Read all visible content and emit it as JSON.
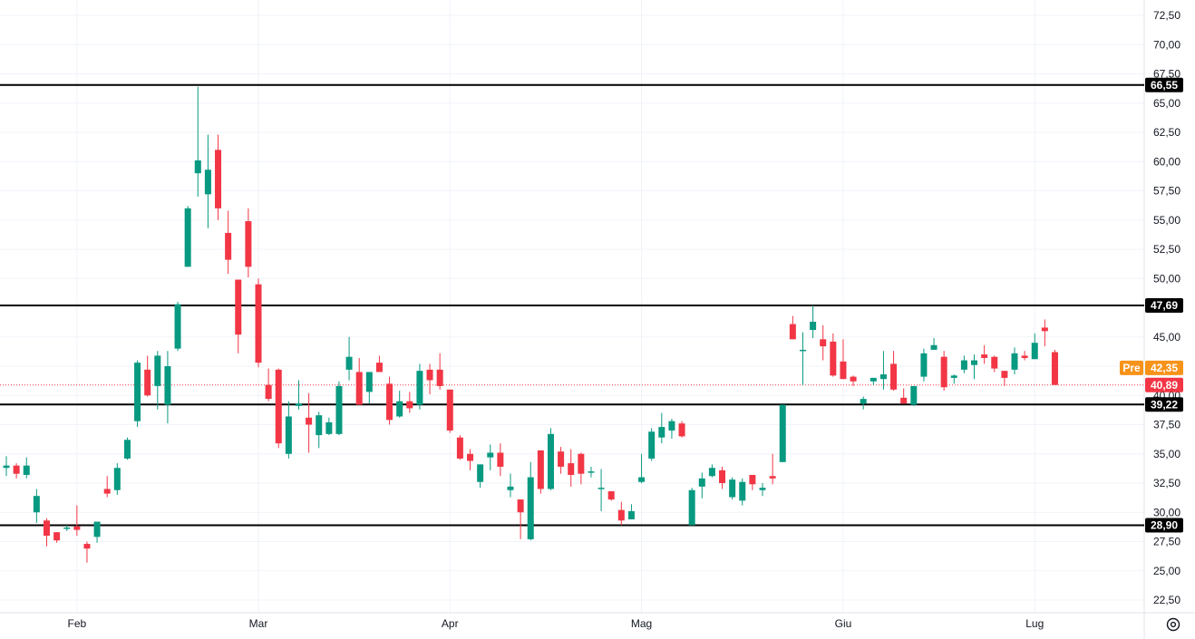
{
  "chart_data": {
    "type": "candlestick",
    "y_axis": {
      "range": [
        21.0,
        73.5
      ],
      "ticks": [
        "72,50",
        "70,00",
        "67,50",
        "65,00",
        "62,50",
        "60,00",
        "57,50",
        "55,00",
        "52,50",
        "50,00",
        "47,50",
        "45,00",
        "42,50",
        "40,00",
        "37,50",
        "35,00",
        "32,50",
        "30,00",
        "27,50",
        "25,00",
        "22,50"
      ]
    },
    "x_axis": {
      "labels": [
        {
          "label": "Feb",
          "index": 7
        },
        {
          "label": "Mar",
          "index": 25
        },
        {
          "label": "Apr",
          "index": 44
        },
        {
          "label": "Mag",
          "index": 63
        },
        {
          "label": "Giu",
          "index": 83
        },
        {
          "label": "Lug",
          "index": 102
        }
      ]
    },
    "horizontal_levels": [
      {
        "value": 66.55,
        "label": "66,55"
      },
      {
        "value": 47.69,
        "label": "47,69"
      },
      {
        "value": 39.22,
        "label": "39,22"
      },
      {
        "value": 28.9,
        "label": "28,90"
      }
    ],
    "pre_market": {
      "label": "Pre",
      "value": 42.35,
      "value_label": "42,35",
      "color": "#f7931a"
    },
    "last_price": {
      "value": 40.89,
      "value_label": "40,89",
      "color": "#f23645"
    },
    "hidden_tick": "40,00",
    "colors": {
      "up": "#089981",
      "down": "#f23645",
      "level": "#000000",
      "grid": "#f0f3fa"
    },
    "candles": [
      [
        33.8,
        34.8,
        33.1,
        34.0
      ],
      [
        34.0,
        34.2,
        32.9,
        33.3
      ],
      [
        33.2,
        34.7,
        32.9,
        34.0
      ],
      [
        30.0,
        32.0,
        29.1,
        31.4
      ],
      [
        29.3,
        29.5,
        27.1,
        28.0
      ],
      [
        28.3,
        28.3,
        27.4,
        27.6
      ],
      [
        28.7,
        28.9,
        28.4,
        28.7
      ],
      [
        28.8,
        30.6,
        28.0,
        28.5
      ],
      [
        27.3,
        27.5,
        25.7,
        26.9
      ],
      [
        27.9,
        29.2,
        27.4,
        29.2
      ],
      [
        32.0,
        33.1,
        31.3,
        31.6
      ],
      [
        31.9,
        34.2,
        31.5,
        33.8
      ],
      [
        34.6,
        36.4,
        34.5,
        36.2
      ],
      [
        37.8,
        43.0,
        37.3,
        42.8
      ],
      [
        42.2,
        43.4,
        39.9,
        40.0
      ],
      [
        40.8,
        43.8,
        38.8,
        43.4
      ],
      [
        39.2,
        43.8,
        37.6,
        42.5
      ],
      [
        44.0,
        48.0,
        43.8,
        47.8
      ],
      [
        51.0,
        56.2,
        51.0,
        56.0
      ],
      [
        59.0,
        66.4,
        57.0,
        60.1
      ],
      [
        57.2,
        62.3,
        54.3,
        59.3
      ],
      [
        61.0,
        62.3,
        55.0,
        56.0
      ],
      [
        53.9,
        55.8,
        50.4,
        51.6
      ],
      [
        49.9,
        49.9,
        43.6,
        45.2
      ],
      [
        54.9,
        56.0,
        50.1,
        51.0
      ],
      [
        49.5,
        50.0,
        42.4,
        42.8
      ],
      [
        40.9,
        42.3,
        39.5,
        39.7
      ],
      [
        42.2,
        42.3,
        35.5,
        35.9
      ],
      [
        35.0,
        39.5,
        34.6,
        38.2
      ],
      [
        39.1,
        41.3,
        38.8,
        39.3
      ],
      [
        38.1,
        40.2,
        35.1,
        37.5
      ],
      [
        36.6,
        38.6,
        35.5,
        38.3
      ],
      [
        36.7,
        38.1,
        36.6,
        37.7
      ],
      [
        36.7,
        41.2,
        36.6,
        40.8
      ],
      [
        42.2,
        45.0,
        41.3,
        43.3
      ],
      [
        42.0,
        43.2,
        39.2,
        39.2
      ],
      [
        40.3,
        42.0,
        39.3,
        42.0
      ],
      [
        42.8,
        43.4,
        42.0,
        42.0
      ],
      [
        41.0,
        41.6,
        37.5,
        37.9
      ],
      [
        38.2,
        40.4,
        38.1,
        39.5
      ],
      [
        39.5,
        40.3,
        38.5,
        38.9
      ],
      [
        39.2,
        42.7,
        38.8,
        42.1
      ],
      [
        42.2,
        42.7,
        40.1,
        41.3
      ],
      [
        42.2,
        43.6,
        40.5,
        40.8
      ],
      [
        40.5,
        40.5,
        36.8,
        37.0
      ],
      [
        36.4,
        36.6,
        34.5,
        34.6
      ],
      [
        35.0,
        35.4,
        33.6,
        34.4
      ],
      [
        32.6,
        34.1,
        32.1,
        34.1
      ],
      [
        34.7,
        35.8,
        33.6,
        35.1
      ],
      [
        35.1,
        35.9,
        33.1,
        33.9
      ],
      [
        31.9,
        33.3,
        31.3,
        32.2
      ],
      [
        31.1,
        31.1,
        27.7,
        30.0
      ],
      [
        27.7,
        34.3,
        27.6,
        33.0
      ],
      [
        35.3,
        35.3,
        31.6,
        32.0
      ],
      [
        32.0,
        37.2,
        31.9,
        36.7
      ],
      [
        35.2,
        35.6,
        33.3,
        33.9
      ],
      [
        34.2,
        35.4,
        32.2,
        33.2
      ],
      [
        35.0,
        35.1,
        32.4,
        33.3
      ],
      [
        33.4,
        33.9,
        33.0,
        33.5
      ],
      [
        32.1,
        33.7,
        30.1,
        32.1
      ],
      [
        31.8,
        31.8,
        31.0,
        31.1
      ],
      [
        30.2,
        30.9,
        28.9,
        29.3
      ],
      [
        29.4,
        30.7,
        29.4,
        30.1
      ],
      [
        32.6,
        35.0,
        32.5,
        33.0
      ],
      [
        34.6,
        37.2,
        34.4,
        36.9
      ],
      [
        36.4,
        38.5,
        35.9,
        37.3
      ],
      [
        37.0,
        38.0,
        36.3,
        37.8
      ],
      [
        37.6,
        37.8,
        36.4,
        36.5
      ],
      [
        28.9,
        32.1,
        28.9,
        31.9
      ],
      [
        32.2,
        33.4,
        31.2,
        32.9
      ],
      [
        33.1,
        34.1,
        33.0,
        33.8
      ],
      [
        33.6,
        33.9,
        32.0,
        32.5
      ],
      [
        31.3,
        33.0,
        31.1,
        32.8
      ],
      [
        31.0,
        32.9,
        30.6,
        32.6
      ],
      [
        33.2,
        33.2,
        31.9,
        32.4
      ],
      [
        31.9,
        32.5,
        31.4,
        32.1
      ],
      [
        33.1,
        35.0,
        32.4,
        32.9
      ],
      [
        34.3,
        39.2,
        34.3,
        39.2
      ],
      [
        46.1,
        46.8,
        44.8,
        44.8
      ],
      [
        43.8,
        45.4,
        40.9,
        43.9
      ],
      [
        45.6,
        47.7,
        44.9,
        46.3
      ],
      [
        44.8,
        46.0,
        43.0,
        44.2
      ],
      [
        44.6,
        45.3,
        41.6,
        41.7
      ],
      [
        42.9,
        44.8,
        41.4,
        41.4
      ],
      [
        41.6,
        41.7,
        40.8,
        41.2
      ],
      [
        39.3,
        39.9,
        38.8,
        39.7
      ],
      [
        41.2,
        41.5,
        40.9,
        41.5
      ],
      [
        41.4,
        43.8,
        40.5,
        41.8
      ],
      [
        42.7,
        43.8,
        40.4,
        40.5
      ],
      [
        39.8,
        40.6,
        39.3,
        39.3
      ],
      [
        39.2,
        40.8,
        39.1,
        40.8
      ],
      [
        41.6,
        44.0,
        41.2,
        43.6
      ],
      [
        43.9,
        44.9,
        43.9,
        44.3
      ],
      [
        43.3,
        43.8,
        40.4,
        40.7
      ],
      [
        41.5,
        41.8,
        41.0,
        41.7
      ],
      [
        42.2,
        43.4,
        41.9,
        43.0
      ],
      [
        42.6,
        43.5,
        41.4,
        43.0
      ],
      [
        43.5,
        44.3,
        42.7,
        43.2
      ],
      [
        43.3,
        43.4,
        42.0,
        42.3
      ],
      [
        42.1,
        42.1,
        40.8,
        41.5
      ],
      [
        42.2,
        44.1,
        41.8,
        43.6
      ],
      [
        43.4,
        43.8,
        43.0,
        43.2
      ],
      [
        43.1,
        45.3,
        43.1,
        44.5
      ],
      [
        45.8,
        46.5,
        44.2,
        45.5
      ],
      [
        43.7,
        43.9,
        40.9,
        40.9
      ]
    ]
  }
}
